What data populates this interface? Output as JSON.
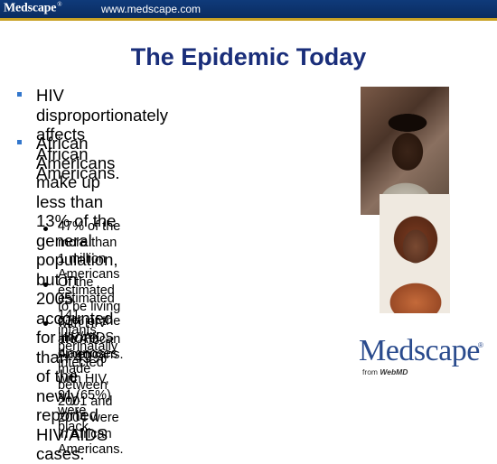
{
  "header": {
    "brand": "Medscape",
    "brand_mark": "®",
    "url": "www.medscape.com"
  },
  "slide": {
    "title": "The Epidemic Today",
    "bullets": [
      {
        "lines": [
          "HIV disproportionately affects",
          "African Americans."
        ]
      },
      {
        "lines": [
          "African Americans make up less than",
          "13% of the general population, but in 2005",
          "accounted for more than 49% of the",
          "newly reported HIV/AIDS cases."
        ]
      }
    ],
    "subbullets": [
      {
        "lines": [
          "47% of the more than 1 million Americans",
          "estimated to be living with HIV are African",
          "Americans."
        ]
      },
      {
        "lines": [
          "Of the estimated 141 infants perinatally infected",
          "with HIV, 91 (65%) were black."
        ]
      },
      {
        "lines": [
          "61% of the HIV/AIDS diagnoses",
          "made between 2001 and 2004 were",
          "in African Americans."
        ]
      }
    ]
  },
  "logo": {
    "word": "Medscape",
    "mark": "®",
    "from": "from",
    "webmd": "WebMD"
  },
  "colors": {
    "header_bg": "#0f3a7a",
    "header_rule": "#c9a225",
    "title": "#1a2e7a",
    "bullet_marker": "#3377cc",
    "logo": "#2a4b8d"
  }
}
